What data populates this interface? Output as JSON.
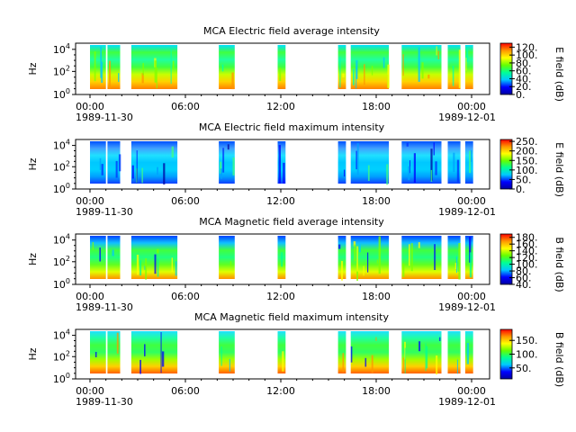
{
  "chart_data": [
    {
      "type": "heatmap",
      "title": "MCA  Electric field average intensity",
      "ylabel": "Hz",
      "colorbar_label": "E field (dB)",
      "colorbar_ticks": [
        "0.",
        "20.",
        "40.",
        "60.",
        "80.",
        "100.",
        "120."
      ],
      "colorbar_range": [
        0,
        130
      ],
      "y_scale": "log",
      "y_range": [
        1,
        50000
      ],
      "y_ticks": [
        "10^0",
        "10^2",
        "10^4"
      ],
      "x_range": [
        "1989-11-30 00:00",
        "1989-12-01 00:00"
      ]
    },
    {
      "type": "heatmap",
      "title": "MCA  Electric field maximum intensity",
      "ylabel": "Hz",
      "colorbar_label": "E field (dB)",
      "colorbar_ticks": [
        "0.",
        "50.",
        "100.",
        "150.",
        "200.",
        "250."
      ],
      "colorbar_range": [
        0,
        260
      ],
      "y_scale": "log",
      "y_range": [
        1,
        50000
      ],
      "y_ticks": [
        "10^0",
        "10^2",
        "10^4"
      ],
      "x_range": [
        "1989-11-30 00:00",
        "1989-12-01 00:00"
      ]
    },
    {
      "type": "heatmap",
      "title": "MCA  Magnetic field average intensity",
      "ylabel": "Hz",
      "colorbar_label": "B field (dB)",
      "colorbar_ticks": [
        "40.",
        "60.",
        "80.",
        "100.",
        "120.",
        "140.",
        "160.",
        "180."
      ],
      "colorbar_range": [
        40,
        190
      ],
      "y_scale": "log",
      "y_range": [
        1,
        50000
      ],
      "y_ticks": [
        "10^0",
        "10^2",
        "10^4"
      ],
      "x_range": [
        "1989-11-30 00:00",
        "1989-12-01 00:00"
      ]
    },
    {
      "type": "heatmap",
      "title": "MCA  Magnetic field maximum intensity",
      "ylabel": "Hz",
      "colorbar_label": "B field (dB)",
      "colorbar_ticks": [
        "50.",
        "100.",
        "150."
      ],
      "colorbar_range": [
        10,
        190
      ],
      "y_scale": "log",
      "y_range": [
        1,
        50000
      ],
      "y_ticks": [
        "10^0",
        "10^2",
        "10^4"
      ],
      "x_range": [
        "1989-11-30 00:00",
        "1989-12-01 00:00"
      ]
    }
  ],
  "x_tick_labels": [
    "00:00",
    "06:00",
    "12:00",
    "18:00",
    "00:00"
  ],
  "x_tick_hours": [
    0,
    6,
    12,
    18,
    24
  ],
  "x_date_labels": [
    "1989-11-30",
    "1989-12-01"
  ],
  "data_segments_hours": [
    [
      0.0,
      1.0
    ],
    [
      1.1,
      1.9
    ],
    [
      2.6,
      5.5
    ],
    [
      8.1,
      9.1
    ],
    [
      11.8,
      12.3
    ],
    [
      15.6,
      16.1
    ],
    [
      16.4,
      18.8
    ],
    [
      19.6,
      22.1
    ],
    [
      22.5,
      23.3
    ],
    [
      23.6,
      24.1
    ]
  ],
  "colormap": [
    "#0000a0",
    "#0000ff",
    "#00c8ff",
    "#00ff96",
    "#64ff00",
    "#ffff00",
    "#ff9600",
    "#ff0000"
  ]
}
